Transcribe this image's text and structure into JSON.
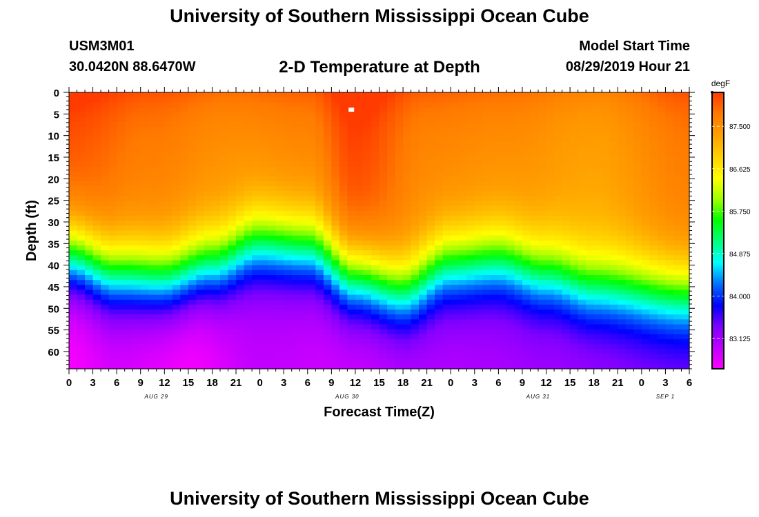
{
  "header": {
    "title": "University of Southern Mississippi Ocean Cube",
    "station_id": "USM3M01",
    "location": "30.0420N 88.6470W",
    "plot_title": "2-D Temperature at Depth",
    "model_start_label": "Model Start Time",
    "model_start_value": "08/29/2019 Hour 21"
  },
  "footer": {
    "title": "University of Southern Mississippi Ocean Cube"
  },
  "chart_data": {
    "type": "heatmap",
    "title": "2-D Temperature at Depth",
    "xlabel": "Forecast Time(Z)",
    "ylabel": "Depth (ft)",
    "xlim_hours": [
      0,
      78
    ],
    "ylim_ft": [
      0,
      64
    ],
    "x_tick_labels": [
      "0",
      "3",
      "6",
      "9",
      "12",
      "15",
      "18",
      "21",
      "0",
      "3",
      "6",
      "9",
      "12",
      "15",
      "18",
      "21",
      "0",
      "3",
      "6",
      "9",
      "12",
      "15",
      "18",
      "21",
      "0",
      "3",
      "6"
    ],
    "x_tick_hours": [
      0,
      3,
      6,
      9,
      12,
      15,
      18,
      21,
      24,
      27,
      30,
      33,
      36,
      39,
      42,
      45,
      48,
      51,
      54,
      57,
      60,
      63,
      66,
      69,
      72,
      75,
      78
    ],
    "date_labels": [
      {
        "text": "AUG 29",
        "hour": 11
      },
      {
        "text": "AUG 30",
        "hour": 35
      },
      {
        "text": "AUG 31",
        "hour": 59
      },
      {
        "text": "SEP 1",
        "hour": 75
      }
    ],
    "y_ticks": [
      0,
      5,
      10,
      15,
      20,
      25,
      30,
      35,
      40,
      45,
      50,
      55,
      60
    ],
    "colorbar": {
      "unit": "degF",
      "min": 82.5,
      "max": 88.2,
      "tick_values": [
        87.5,
        86.625,
        85.75,
        84.875,
        84.0,
        83.125
      ],
      "tick_labels": [
        "87.500",
        "86.625",
        "85.750",
        "84.875",
        "84.000",
        "83.125"
      ],
      "colors": [
        "#ff00ff",
        "#c000ff",
        "#7f00ff",
        "#0000ff",
        "#0070ff",
        "#00ffff",
        "#00ff7f",
        "#00ff00",
        "#a0ff00",
        "#ffff00",
        "#ffd000",
        "#ffa000",
        "#ff7a00",
        "#ff3b00"
      ]
    },
    "surface_temp_degF": [
      88.0,
      87.7,
      87.5,
      87.6,
      88.1,
      87.6,
      87.5,
      87.3,
      87.7
    ],
    "surface_temp_hours": [
      0,
      10,
      20,
      30,
      36,
      45,
      55,
      66,
      78
    ],
    "thermocline_depth_ft": [
      38,
      42,
      43,
      40,
      35,
      36,
      43,
      46,
      40,
      39,
      42,
      45,
      47
    ],
    "thermocline_hours": [
      0,
      6,
      12,
      18,
      24,
      30,
      36,
      42,
      48,
      54,
      60,
      66,
      78
    ],
    "bottom_temp_degF": [
      82.5,
      82.7,
      82.5,
      82.9,
      82.8,
      83.0,
      83.1,
      83.3
    ],
    "bottom_temp_hours": [
      0,
      6,
      15,
      24,
      36,
      48,
      60,
      78
    ],
    "marker": {
      "hour": 35.5,
      "depth_ft": 4
    }
  }
}
